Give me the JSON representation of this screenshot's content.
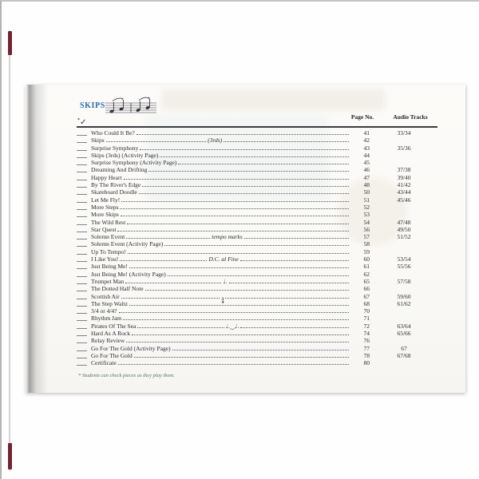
{
  "page": {
    "section_label": "SKIPS",
    "checkmark_note": "*",
    "checkmark": "✓",
    "columns": {
      "page_no": "Page No.",
      "audio_tracks": "Audio Tracks"
    },
    "footnote": "* Students can check pieces as they play them.",
    "accent_color": "#2e6ba8",
    "cover_color": "#6e2531"
  },
  "toc": {
    "rows": [
      {
        "title": "Who Could It Be?",
        "page": "41",
        "tracks": "33/34"
      },
      {
        "title": "Skips",
        "annotation": "(3rds)",
        "annotation_style": "italic",
        "page": "42",
        "tracks": ""
      },
      {
        "title": "Surprise Symphony",
        "page": "43",
        "tracks": "35/36"
      },
      {
        "title": "Skips (3rds) (Activity Page)",
        "page": "44",
        "tracks": ""
      },
      {
        "title": "Surprise Symphony (Activity Page)",
        "page": "45",
        "tracks": ""
      },
      {
        "title": "Dreaming And Drifting",
        "page": "46",
        "tracks": "37/38"
      },
      {
        "title": "Happy Heart",
        "page": "47",
        "tracks": "39/40"
      },
      {
        "title": "By The River's Edge",
        "page": "48",
        "tracks": "41/42"
      },
      {
        "title": "Skateboard Doodle",
        "page": "50",
        "tracks": "43/44"
      },
      {
        "title": "Let Me Fly!",
        "page": "51",
        "tracks": "45/46"
      },
      {
        "title": "More Steps",
        "page": "52",
        "tracks": ""
      },
      {
        "title": "More Skips",
        "page": "53",
        "tracks": ""
      },
      {
        "title": "The Wild Rest",
        "page": "54",
        "tracks": "47/48"
      },
      {
        "title": "Star Quest",
        "page": "56",
        "tracks": "49/50"
      },
      {
        "title": "Solemn Event",
        "annotation": "tempo marks",
        "annotation_style": "italic",
        "page": "57",
        "tracks": "51/52"
      },
      {
        "title": "Solemn Event (Activity Page)",
        "page": "58",
        "tracks": ""
      },
      {
        "title": "Up To Tempo!",
        "page": "59",
        "tracks": ""
      },
      {
        "title": "I Like You!",
        "annotation": "D.C. al Fine",
        "annotation_style": "italic",
        "page": "60",
        "tracks": "53/54"
      },
      {
        "title": "Just Being Me!",
        "page": "61",
        "tracks": "55/56"
      },
      {
        "title": "Just Being Me! (Activity Page)",
        "page": "62",
        "tracks": ""
      },
      {
        "title": "Trumpet Man",
        "annotation": "♩.",
        "annotation_style": "music",
        "page": "65",
        "tracks": "57/58"
      },
      {
        "title": "The Dotted Half Note",
        "page": "66",
        "tracks": ""
      },
      {
        "title": "Scottish Air",
        "annotation": "3/4",
        "annotation_style": "timesig",
        "page": "67",
        "tracks": "59/60"
      },
      {
        "title": "The Step Waltz",
        "page": "68",
        "tracks": "61/62"
      },
      {
        "title": "3/4 or 4/4?",
        "page": "70",
        "tracks": ""
      },
      {
        "title": "Rhythm Jam",
        "page": "71",
        "tracks": ""
      },
      {
        "title": "Pirates Of The Sea",
        "annotation": "♩.‿♩.",
        "annotation_style": "music",
        "page": "72",
        "tracks": "63/64"
      },
      {
        "title": "Hard As A Rock",
        "page": "74",
        "tracks": "65/66"
      },
      {
        "title": "Relay Review",
        "page": "76",
        "tracks": ""
      },
      {
        "title": "Go For The Gold (Activity Page)",
        "page": "77",
        "tracks": "67"
      },
      {
        "title": "Go For The Gold",
        "page": "78",
        "tracks": "67/68"
      },
      {
        "title": "Certificate",
        "page": "80",
        "tracks": ""
      }
    ]
  }
}
